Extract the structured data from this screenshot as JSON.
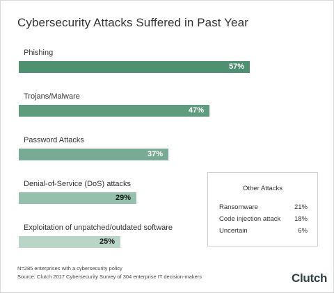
{
  "colors": {
    "bars": [
      "#4f8f72",
      "#5f9b7f",
      "#78ab93",
      "#95c0ab",
      "#b9d5c7"
    ],
    "value_text": [
      "#ffffff",
      "#ffffff",
      "#ffffff",
      "#1a1a1a",
      "#1a1a1a"
    ]
  },
  "chart_data": {
    "type": "bar",
    "orientation": "horizontal",
    "title": "Cybersecurity Attacks Suffered in Past Year",
    "categories": [
      "Phishing",
      "Trojans/Malware",
      "Password Attacks",
      "Denial-of-Service (DoS) attacks",
      "Exploitation of unpatched/outdated software"
    ],
    "values": [
      57,
      47,
      37,
      29,
      25
    ],
    "value_labels": [
      "57%",
      "47%",
      "37%",
      "29%",
      "25%"
    ],
    "xlim": [
      0,
      100
    ]
  },
  "other_attacks": {
    "title": "Other Attacks",
    "rows": [
      {
        "name": "Ransomware",
        "value": "21%"
      },
      {
        "name": "Code injection attack",
        "value": "18%"
      },
      {
        "name": "Uncertain",
        "value": "6%"
      }
    ]
  },
  "footnote": {
    "line1": "N=285 enterprises with a cybersecurity policy",
    "line2": "Source: Clutch 2017 Cybersecurity Survey of 304 enterprise IT decision-makers"
  },
  "logo": "Clutch"
}
